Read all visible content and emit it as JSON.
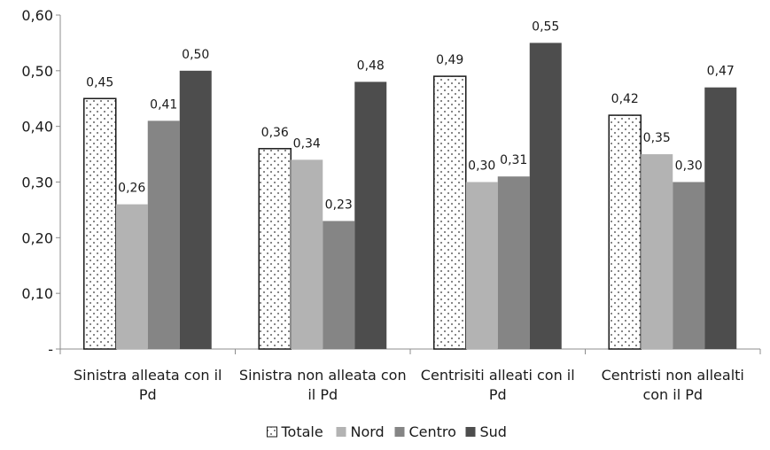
{
  "chart_data": {
    "type": "bar",
    "categories": [
      [
        "Sinistra alleata con il",
        "Pd"
      ],
      [
        "Sinistra non alleata con",
        "il Pd"
      ],
      [
        "Centrisiti alleati con il",
        "Pd"
      ],
      [
        "Centristi non allealti",
        "con il Pd"
      ]
    ],
    "series": [
      {
        "name": "Totale",
        "values": [
          0.45,
          0.36,
          0.49,
          0.42
        ],
        "labels": [
          "0,45",
          "0,36",
          "0,49",
          "0,42"
        ],
        "color": "#ffffff",
        "pattern": "dots"
      },
      {
        "name": "Nord",
        "values": [
          0.26,
          0.34,
          0.3,
          0.35
        ],
        "labels": [
          "0,26",
          "0,34",
          "0,30",
          "0,35"
        ],
        "color": "#b3b3b3"
      },
      {
        "name": "Centro",
        "values": [
          0.41,
          0.23,
          0.31,
          0.3
        ],
        "labels": [
          "0,41",
          "0,23",
          "0,31",
          "0,30"
        ],
        "color": "#858585"
      },
      {
        "name": "Sud",
        "values": [
          0.5,
          0.48,
          0.55,
          0.47
        ],
        "labels": [
          "0,50",
          "0,48",
          "0,55",
          "0,47"
        ],
        "color": "#4d4d4d"
      }
    ],
    "y_ticks": [
      {
        "value": 0.0,
        "label": "-"
      },
      {
        "value": 0.1,
        "label": "0,10"
      },
      {
        "value": 0.2,
        "label": "0,20"
      },
      {
        "value": 0.3,
        "label": "0,30"
      },
      {
        "value": 0.4,
        "label": "0,40"
      },
      {
        "value": 0.5,
        "label": "0,50"
      },
      {
        "value": 0.6,
        "label": "0,60"
      }
    ],
    "ylim": [
      0,
      0.6
    ],
    "grid": false,
    "legend_position": "bottom",
    "title": "",
    "xlabel": "",
    "ylabel": ""
  }
}
